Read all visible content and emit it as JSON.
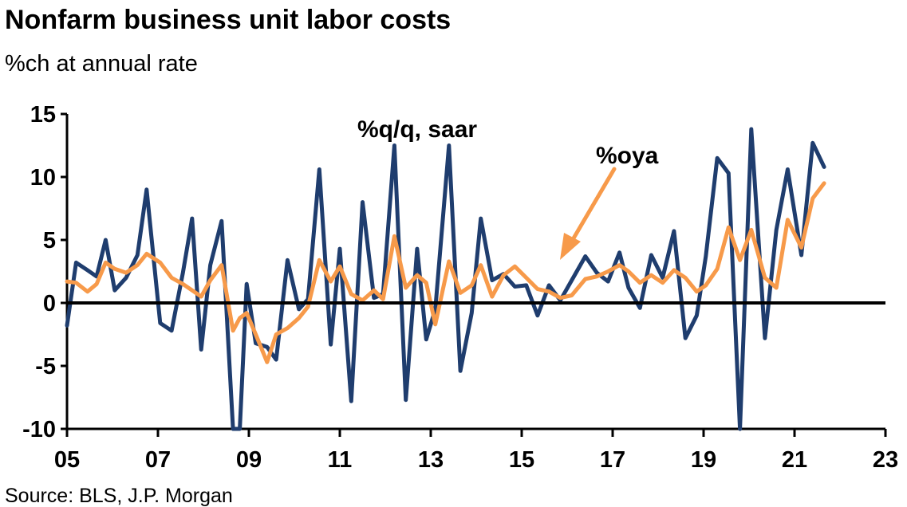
{
  "chart_data": {
    "type": "line",
    "title": "Nonfarm business unit labor costs",
    "subtitle": "%ch at annual rate",
    "source": "Source: BLS, J.P. Morgan",
    "xlim": [
      2005.0,
      2023.0
    ],
    "ylim": [
      -10,
      15
    ],
    "x_ticks": [
      {
        "value": 2005,
        "label": "05"
      },
      {
        "value": 2007,
        "label": "07"
      },
      {
        "value": 2009,
        "label": "09"
      },
      {
        "value": 2011,
        "label": "11"
      },
      {
        "value": 2013,
        "label": "13"
      },
      {
        "value": 2015,
        "label": "15"
      },
      {
        "value": 2017,
        "label": "17"
      },
      {
        "value": 2019,
        "label": "19"
      },
      {
        "value": 2021,
        "label": "21"
      },
      {
        "value": 2023,
        "label": "23"
      }
    ],
    "y_ticks": [
      15,
      10,
      5,
      0,
      -5,
      -10
    ],
    "series": [
      {
        "name": "%q/q, saar",
        "color": "#1f3d6e",
        "points": [
          [
            2005.0,
            -1.8
          ],
          [
            2005.2,
            3.2
          ],
          [
            2005.45,
            2.6
          ],
          [
            2005.65,
            2.1
          ],
          [
            2005.85,
            5.0
          ],
          [
            2006.05,
            1.0
          ],
          [
            2006.3,
            2.0
          ],
          [
            2006.55,
            3.8
          ],
          [
            2006.75,
            9.0
          ],
          [
            2007.05,
            -1.6
          ],
          [
            2007.3,
            -2.2
          ],
          [
            2007.55,
            2.4
          ],
          [
            2007.75,
            6.7
          ],
          [
            2007.95,
            -3.7
          ],
          [
            2008.15,
            3.0
          ],
          [
            2008.4,
            6.5
          ],
          [
            2008.65,
            -10.0
          ],
          [
            2008.8,
            -10.0
          ],
          [
            2008.95,
            1.5
          ],
          [
            2009.15,
            -3.2
          ],
          [
            2009.4,
            -3.5
          ],
          [
            2009.6,
            -4.5
          ],
          [
            2009.85,
            3.4
          ],
          [
            2010.1,
            -0.5
          ],
          [
            2010.3,
            0.3
          ],
          [
            2010.55,
            10.6
          ],
          [
            2010.8,
            -3.3
          ],
          [
            2011.0,
            4.3
          ],
          [
            2011.25,
            -7.8
          ],
          [
            2011.5,
            8.0
          ],
          [
            2011.75,
            0.4
          ],
          [
            2011.95,
            0.7
          ],
          [
            2012.2,
            12.5
          ],
          [
            2012.45,
            -7.7
          ],
          [
            2012.7,
            4.3
          ],
          [
            2012.9,
            -2.9
          ],
          [
            2013.1,
            -0.5
          ],
          [
            2013.4,
            12.5
          ],
          [
            2013.65,
            -5.4
          ],
          [
            2013.9,
            -0.8
          ],
          [
            2014.1,
            6.7
          ],
          [
            2014.35,
            1.8
          ],
          [
            2014.6,
            2.3
          ],
          [
            2014.85,
            1.3
          ],
          [
            2015.1,
            1.4
          ],
          [
            2015.35,
            -1.0
          ],
          [
            2015.6,
            1.4
          ],
          [
            2015.85,
            0.2
          ],
          [
            2016.1,
            1.8
          ],
          [
            2016.4,
            3.7
          ],
          [
            2016.65,
            2.4
          ],
          [
            2016.9,
            1.7
          ],
          [
            2017.15,
            4.0
          ],
          [
            2017.35,
            1.2
          ],
          [
            2017.6,
            -0.4
          ],
          [
            2017.85,
            3.8
          ],
          [
            2018.1,
            2.0
          ],
          [
            2018.35,
            5.7
          ],
          [
            2018.6,
            -2.8
          ],
          [
            2018.85,
            -1.0
          ],
          [
            2019.05,
            3.7
          ],
          [
            2019.3,
            11.5
          ],
          [
            2019.55,
            10.3
          ],
          [
            2019.8,
            -10.0
          ],
          [
            2020.05,
            13.8
          ],
          [
            2020.35,
            -2.8
          ],
          [
            2020.6,
            5.8
          ],
          [
            2020.85,
            10.6
          ],
          [
            2021.15,
            3.8
          ],
          [
            2021.4,
            12.7
          ],
          [
            2021.65,
            10.8
          ]
        ]
      },
      {
        "name": "%oya",
        "color": "#f79a4a",
        "points": [
          [
            2005.0,
            1.7
          ],
          [
            2005.2,
            1.6
          ],
          [
            2005.45,
            0.9
          ],
          [
            2005.65,
            1.5
          ],
          [
            2005.85,
            3.2
          ],
          [
            2006.05,
            2.7
          ],
          [
            2006.3,
            2.4
          ],
          [
            2006.55,
            3.0
          ],
          [
            2006.75,
            3.9
          ],
          [
            2007.05,
            3.2
          ],
          [
            2007.3,
            2.0
          ],
          [
            2007.55,
            1.5
          ],
          [
            2007.75,
            1.0
          ],
          [
            2007.95,
            0.5
          ],
          [
            2008.15,
            1.8
          ],
          [
            2008.4,
            3.0
          ],
          [
            2008.65,
            -2.2
          ],
          [
            2008.8,
            -1.2
          ],
          [
            2008.95,
            -0.8
          ],
          [
            2009.15,
            -2.5
          ],
          [
            2009.4,
            -4.7
          ],
          [
            2009.6,
            -2.5
          ],
          [
            2009.85,
            -2.0
          ],
          [
            2010.1,
            -1.2
          ],
          [
            2010.3,
            -0.3
          ],
          [
            2010.55,
            3.4
          ],
          [
            2010.8,
            1.7
          ],
          [
            2011.0,
            2.9
          ],
          [
            2011.25,
            0.7
          ],
          [
            2011.5,
            0.2
          ],
          [
            2011.75,
            1.0
          ],
          [
            2011.95,
            0.3
          ],
          [
            2012.2,
            5.3
          ],
          [
            2012.45,
            1.2
          ],
          [
            2012.7,
            2.2
          ],
          [
            2012.9,
            1.6
          ],
          [
            2013.1,
            -1.7
          ],
          [
            2013.4,
            3.3
          ],
          [
            2013.65,
            0.8
          ],
          [
            2013.9,
            1.4
          ],
          [
            2014.1,
            3.0
          ],
          [
            2014.35,
            0.5
          ],
          [
            2014.6,
            2.2
          ],
          [
            2014.85,
            2.9
          ],
          [
            2015.1,
            2.0
          ],
          [
            2015.35,
            1.1
          ],
          [
            2015.6,
            0.9
          ],
          [
            2015.85,
            0.4
          ],
          [
            2016.1,
            0.6
          ],
          [
            2016.4,
            1.9
          ],
          [
            2016.65,
            2.1
          ],
          [
            2016.9,
            2.5
          ],
          [
            2017.15,
            3.0
          ],
          [
            2017.35,
            2.5
          ],
          [
            2017.6,
            1.6
          ],
          [
            2017.85,
            2.2
          ],
          [
            2018.1,
            1.6
          ],
          [
            2018.35,
            2.6
          ],
          [
            2018.6,
            2.0
          ],
          [
            2018.85,
            0.9
          ],
          [
            2019.05,
            1.4
          ],
          [
            2019.3,
            2.7
          ],
          [
            2019.55,
            6.0
          ],
          [
            2019.8,
            3.4
          ],
          [
            2020.05,
            5.8
          ],
          [
            2020.35,
            2.0
          ],
          [
            2020.6,
            1.2
          ],
          [
            2020.85,
            6.6
          ],
          [
            2021.15,
            4.4
          ],
          [
            2021.4,
            8.3
          ],
          [
            2021.65,
            9.5
          ]
        ]
      }
    ],
    "annotations": [
      {
        "text": "%q/q, saar"
      },
      {
        "text": "%oya"
      }
    ]
  }
}
